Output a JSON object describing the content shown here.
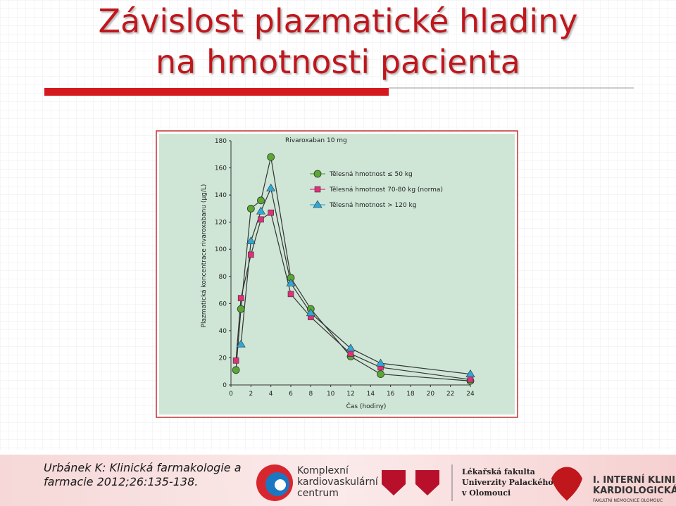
{
  "slide": {
    "title_lines": [
      "Závislost plazmatické hladiny",
      "na hmotnosti pacienta"
    ],
    "citation_lines": [
      "Urbánek K: Klinická farmakologie a",
      "farmacie 2012;26:135-138."
    ],
    "logo_center": [
      "Komplexní",
      "kardiovaskulární",
      "centrum"
    ],
    "logo_faculty": [
      "Lékařská fakulta",
      "Univerzity Palackého",
      "v Olomouci"
    ],
    "logo_clinic": [
      "I. INTERNÍ KLINIKA",
      "KARDIOLOGICKÁ",
      "FAKULTNÍ NEMOCNICE OLOMOUC"
    ]
  },
  "chart_data": {
    "type": "line",
    "title": "Rivaroxaban 10 mg",
    "x_label": "Čas (hodiny)",
    "y_label": "Plazmatická koncentrace rivaroxabanu (µg/L)",
    "x": [
      0.5,
      1,
      2,
      3,
      4,
      6,
      8,
      12,
      15,
      24
    ],
    "series": [
      {
        "name": "Tělesná hmotnost ≤ 50 kg",
        "color": "#5aa832",
        "marker": "circle",
        "values": [
          11,
          56,
          130,
          136,
          168,
          79,
          56,
          21,
          8,
          3
        ]
      },
      {
        "name": "Tělesná hmotnost 70-80 kg (norma)",
        "color": "#e0307a",
        "marker": "square",
        "values": [
          18,
          64,
          96,
          122,
          127,
          67,
          50,
          23,
          13,
          4
        ]
      },
      {
        "name": "Tělesná hmotnost > 120 kg",
        "color": "#2fa8d8",
        "marker": "triangle",
        "values": [
          null,
          30,
          106,
          128,
          145,
          75,
          53,
          27,
          16,
          8
        ]
      }
    ],
    "xlim": [
      0,
      24
    ],
    "xticks": [
      0,
      2,
      4,
      6,
      8,
      10,
      12,
      14,
      16,
      18,
      20,
      22,
      24
    ],
    "ylim": [
      0,
      180
    ],
    "yticks": [
      0,
      20,
      40,
      60,
      80,
      100,
      120,
      140,
      160,
      180
    ]
  }
}
